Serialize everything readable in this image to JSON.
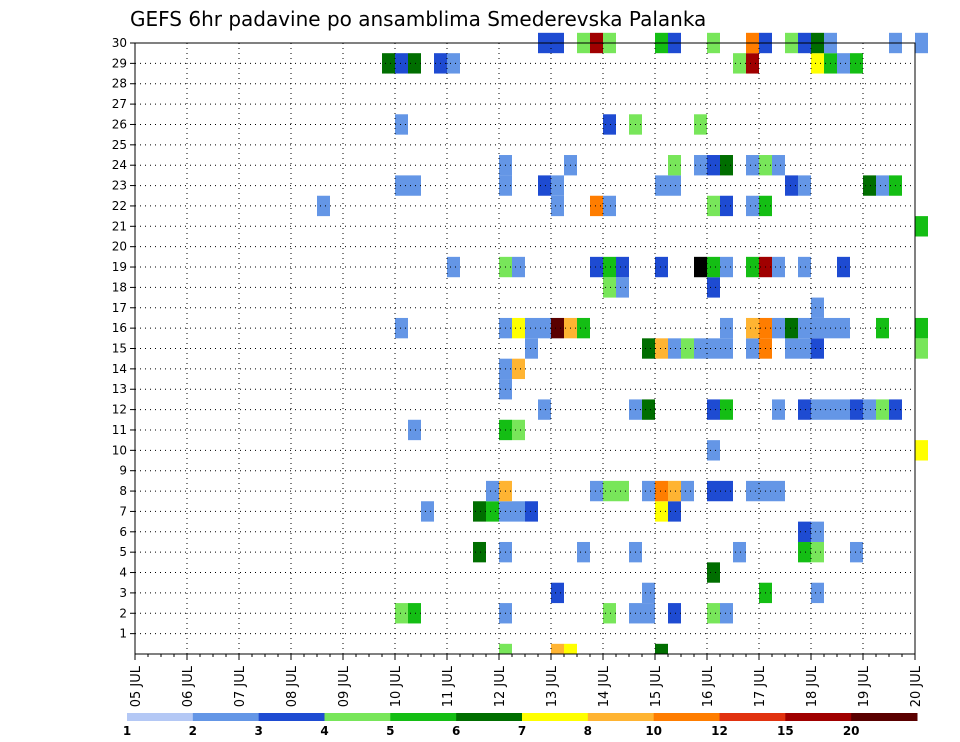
{
  "chart_data": {
    "type": "heatmap",
    "title": "GEFS 6hr padavine po ansamblima Smederevska Palanka",
    "xlabel": "",
    "ylabel": "",
    "x_ticks": [
      "05 JUL",
      "06 JUL",
      "07 JUL",
      "08 JUL",
      "09 JUL",
      "10 JUL",
      "11 JUL",
      "12 JUL",
      "13 JUL",
      "14 JUL",
      "15 JUL",
      "16 JUL",
      "17 JUL",
      "18 JUL",
      "19 JUL",
      "20 JUL"
    ],
    "y_ticks": [
      "1",
      "2",
      "3",
      "4",
      "5",
      "6",
      "7",
      "8",
      "9",
      "10",
      "11",
      "12",
      "13",
      "14",
      "15",
      "16",
      "17",
      "18",
      "19",
      "20",
      "21",
      "22",
      "23",
      "24",
      "25",
      "26",
      "27",
      "28",
      "29",
      "30"
    ],
    "xlim_days": [
      0,
      15
    ],
    "ylim": [
      0,
      30
    ],
    "grid": true,
    "colorbar": {
      "labels": [
        "1",
        "2",
        "3",
        "4",
        "5",
        "6",
        "7",
        "8",
        "10",
        "12",
        "15",
        "20"
      ],
      "colors": [
        "#b4c8f5",
        "#6496e6",
        "#1e4bd2",
        "#78e65a",
        "#14be14",
        "#006e00",
        "#ffff00",
        "#ffb432",
        "#ff7d00",
        "#e1320f",
        "#a00000",
        "#5a0000"
      ]
    },
    "cells": [
      [
        7.0,
        0,
        3
      ],
      [
        8.0,
        0,
        7
      ],
      [
        8.25,
        0,
        6
      ],
      [
        10.0,
        0,
        5
      ],
      [
        5.0,
        2,
        3
      ],
      [
        5.25,
        2,
        4
      ],
      [
        7.0,
        2,
        1
      ],
      [
        9.0,
        2,
        3
      ],
      [
        9.5,
        2,
        1
      ],
      [
        9.75,
        2,
        1
      ],
      [
        10.25,
        2,
        2
      ],
      [
        11.0,
        2,
        3
      ],
      [
        11.25,
        2,
        1
      ],
      [
        8.0,
        3,
        2
      ],
      [
        9.75,
        3,
        1
      ],
      [
        12.0,
        3,
        4
      ],
      [
        13.0,
        3,
        1
      ],
      [
        11.0,
        4,
        5
      ],
      [
        6.5,
        5,
        5
      ],
      [
        7.0,
        5,
        1
      ],
      [
        8.5,
        5,
        1
      ],
      [
        9.5,
        5,
        1
      ],
      [
        11.5,
        5,
        1
      ],
      [
        12.75,
        5,
        4
      ],
      [
        13.0,
        5,
        3
      ],
      [
        13.75,
        5,
        1
      ],
      [
        12.75,
        6,
        2
      ],
      [
        13.0,
        6,
        1
      ],
      [
        5.5,
        7,
        1
      ],
      [
        6.5,
        7,
        5
      ],
      [
        6.75,
        7,
        4
      ],
      [
        7.0,
        7,
        1
      ],
      [
        7.25,
        7,
        1
      ],
      [
        7.5,
        7,
        2
      ],
      [
        10.0,
        7,
        6
      ],
      [
        10.25,
        7,
        2
      ],
      [
        6.75,
        8,
        1
      ],
      [
        7.0,
        8,
        7
      ],
      [
        8.75,
        8,
        1
      ],
      [
        9.0,
        8,
        3
      ],
      [
        9.25,
        8,
        3
      ],
      [
        9.75,
        8,
        1
      ],
      [
        10.0,
        8,
        8
      ],
      [
        10.25,
        8,
        7
      ],
      [
        10.5,
        8,
        1
      ],
      [
        11.0,
        8,
        2
      ],
      [
        11.25,
        8,
        2
      ],
      [
        11.75,
        8,
        1
      ],
      [
        12.0,
        8,
        1
      ],
      [
        12.25,
        8,
        1
      ],
      [
        11.0,
        10,
        1
      ],
      [
        15.0,
        10,
        6
      ],
      [
        5.25,
        11,
        1
      ],
      [
        7.0,
        11,
        4
      ],
      [
        7.25,
        11,
        3
      ],
      [
        7.75,
        12,
        1
      ],
      [
        9.5,
        12,
        1
      ],
      [
        9.75,
        12,
        5
      ],
      [
        11.0,
        12,
        2
      ],
      [
        11.25,
        12,
        4
      ],
      [
        12.25,
        12,
        1
      ],
      [
        12.75,
        12,
        2
      ],
      [
        13.0,
        12,
        1
      ],
      [
        13.25,
        12,
        1
      ],
      [
        13.5,
        12,
        1
      ],
      [
        13.75,
        12,
        2
      ],
      [
        14.0,
        12,
        1
      ],
      [
        14.25,
        12,
        3
      ],
      [
        14.5,
        12,
        2
      ],
      [
        7.0,
        13,
        1
      ],
      [
        7.0,
        14,
        1
      ],
      [
        7.25,
        14,
        7
      ],
      [
        7.5,
        15,
        1
      ],
      [
        9.75,
        15,
        5
      ],
      [
        10.0,
        15,
        7
      ],
      [
        10.25,
        15,
        1
      ],
      [
        10.5,
        15,
        3
      ],
      [
        10.75,
        15,
        1
      ],
      [
        11.0,
        15,
        1
      ],
      [
        11.25,
        15,
        1
      ],
      [
        11.75,
        15,
        1
      ],
      [
        12.0,
        15,
        8
      ],
      [
        12.5,
        15,
        1
      ],
      [
        12.75,
        15,
        1
      ],
      [
        13.0,
        15,
        2
      ],
      [
        15.0,
        15,
        3
      ],
      [
        5.0,
        16,
        1
      ],
      [
        7.0,
        16,
        1
      ],
      [
        7.25,
        16,
        6
      ],
      [
        7.5,
        16,
        1
      ],
      [
        7.75,
        16,
        1
      ],
      [
        8.0,
        16,
        11
      ],
      [
        8.25,
        16,
        7
      ],
      [
        8.5,
        16,
        4
      ],
      [
        11.25,
        16,
        1
      ],
      [
        11.75,
        16,
        7
      ],
      [
        12.0,
        16,
        8
      ],
      [
        12.25,
        16,
        1
      ],
      [
        12.5,
        16,
        5
      ],
      [
        12.75,
        16,
        1
      ],
      [
        13.0,
        16,
        1
      ],
      [
        13.25,
        16,
        1
      ],
      [
        13.5,
        16,
        1
      ],
      [
        14.25,
        16,
        4
      ],
      [
        15.0,
        16,
        4
      ],
      [
        13.0,
        17,
        1
      ],
      [
        9.0,
        18,
        3
      ],
      [
        9.25,
        18,
        1
      ],
      [
        11.0,
        18,
        2
      ],
      [
        6.0,
        19,
        1
      ],
      [
        7.0,
        19,
        3
      ],
      [
        7.25,
        19,
        1
      ],
      [
        8.75,
        19,
        2
      ],
      [
        9.0,
        19,
        4
      ],
      [
        9.25,
        19,
        2
      ],
      [
        10.0,
        19,
        2
      ],
      [
        10.75,
        19,
        12
      ],
      [
        11.0,
        19,
        4
      ],
      [
        11.25,
        19,
        1
      ],
      [
        11.75,
        19,
        4
      ],
      [
        12.0,
        19,
        10
      ],
      [
        12.25,
        19,
        1
      ],
      [
        12.75,
        19,
        1
      ],
      [
        13.5,
        19,
        2
      ],
      [
        15.0,
        21,
        4
      ],
      [
        3.5,
        22,
        1
      ],
      [
        8.0,
        22,
        1
      ],
      [
        8.75,
        22,
        8
      ],
      [
        9.0,
        22,
        1
      ],
      [
        11.0,
        22,
        3
      ],
      [
        11.25,
        22,
        2
      ],
      [
        11.75,
        22,
        1
      ],
      [
        12.0,
        22,
        4
      ],
      [
        5.0,
        23,
        1
      ],
      [
        5.25,
        23,
        1
      ],
      [
        7.0,
        23,
        1
      ],
      [
        7.75,
        23,
        2
      ],
      [
        8.0,
        23,
        1
      ],
      [
        10.0,
        23,
        1
      ],
      [
        10.25,
        23,
        1
      ],
      [
        12.5,
        23,
        2
      ],
      [
        12.75,
        23,
        1
      ],
      [
        14.0,
        23,
        5
      ],
      [
        14.25,
        23,
        1
      ],
      [
        14.5,
        23,
        4
      ],
      [
        7.0,
        24,
        1
      ],
      [
        8.25,
        24,
        1
      ],
      [
        10.25,
        24,
        3
      ],
      [
        10.75,
        24,
        1
      ],
      [
        11.0,
        24,
        2
      ],
      [
        11.25,
        24,
        5
      ],
      [
        11.75,
        24,
        1
      ],
      [
        12.0,
        24,
        3
      ],
      [
        12.25,
        24,
        1
      ],
      [
        5.0,
        26,
        1
      ],
      [
        9.0,
        26,
        2
      ],
      [
        9.5,
        26,
        3
      ],
      [
        10.75,
        26,
        3
      ],
      [
        4.75,
        29,
        5
      ],
      [
        5.0,
        29,
        2
      ],
      [
        5.25,
        29,
        5
      ],
      [
        5.75,
        29,
        2
      ],
      [
        6.0,
        29,
        1
      ],
      [
        11.5,
        29,
        3
      ],
      [
        11.75,
        29,
        10
      ],
      [
        13.0,
        29,
        6
      ],
      [
        13.25,
        29,
        4
      ],
      [
        13.5,
        29,
        1
      ],
      [
        13.75,
        29,
        4
      ],
      [
        7.75,
        30,
        2
      ],
      [
        8.0,
        30,
        2
      ],
      [
        8.5,
        30,
        3
      ],
      [
        8.75,
        30,
        10
      ],
      [
        9.0,
        30,
        3
      ],
      [
        10.0,
        30,
        4
      ],
      [
        10.25,
        30,
        2
      ],
      [
        11.0,
        30,
        3
      ],
      [
        11.75,
        30,
        8
      ],
      [
        12.0,
        30,
        2
      ],
      [
        12.5,
        30,
        3
      ],
      [
        12.75,
        30,
        2
      ],
      [
        13.0,
        30,
        5
      ],
      [
        13.25,
        30,
        1
      ],
      [
        14.5,
        30,
        1
      ],
      [
        15.0,
        30,
        1
      ]
    ]
  }
}
